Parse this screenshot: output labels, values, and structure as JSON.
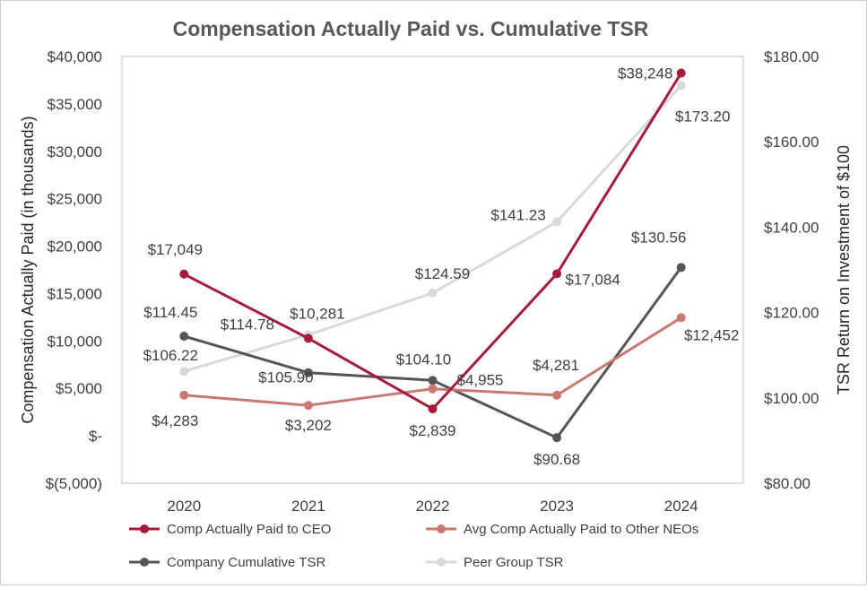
{
  "chart_data": {
    "type": "line",
    "title": "Compensation Actually Paid vs. Cumulative TSR",
    "ylabel": "Compensation Actually Paid (in thousands)",
    "y2label": "TSR Return on Investment of $100",
    "categories": [
      "2020",
      "2021",
      "2022",
      "2023",
      "2024"
    ],
    "ylim": [
      -5000,
      40000
    ],
    "y2lim": [
      80,
      180
    ],
    "yticks": [
      {
        "value": 40000,
        "label": "$40,000"
      },
      {
        "value": 35000,
        "label": "$35,000"
      },
      {
        "value": 30000,
        "label": "$30,000"
      },
      {
        "value": 25000,
        "label": "$25,000"
      },
      {
        "value": 20000,
        "label": "$20,000"
      },
      {
        "value": 15000,
        "label": "$15,000"
      },
      {
        "value": 10000,
        "label": "$10,000"
      },
      {
        "value": 5000,
        "label": "$5,000"
      },
      {
        "value": 0,
        "label": "$-"
      },
      {
        "value": -5000,
        "label": "$(5,000)"
      }
    ],
    "y2ticks": [
      {
        "value": 180,
        "label": "$180.00"
      },
      {
        "value": 160,
        "label": "$160.00"
      },
      {
        "value": 140,
        "label": "$140.00"
      },
      {
        "value": 120,
        "label": "$120.00"
      },
      {
        "value": 100,
        "label": "$100.00"
      },
      {
        "value": 80,
        "label": "$80.00"
      }
    ],
    "series": [
      {
        "name": "Comp Actually Paid to CEO",
        "axis": "left",
        "color": "#a51c3a",
        "values": [
          17049,
          10281,
          2839,
          17084,
          38248
        ],
        "labels": [
          "$17,049",
          "$10,281",
          "$2,839",
          "$17,084",
          "$38,248"
        ]
      },
      {
        "name": "Avg Comp Actually Paid to Other NEOs",
        "axis": "left",
        "color": "#c97872",
        "values": [
          4283,
          3202,
          4955,
          4281,
          12452
        ],
        "labels": [
          "$4,283",
          "$3,202",
          "$4,955",
          "$4,281",
          "$12,452"
        ]
      },
      {
        "name": "Company Cumulative TSR",
        "axis": "right",
        "color": "#555555",
        "values": [
          114.45,
          105.9,
          104.1,
          90.68,
          130.56
        ],
        "labels": [
          "$114.45",
          "$105.90",
          "$104.10",
          "$90.68",
          "$130.56"
        ]
      },
      {
        "name": "Peer Group TSR",
        "axis": "right",
        "color": "#d9d9d9",
        "values": [
          106.22,
          114.78,
          124.59,
          141.23,
          173.2
        ],
        "labels": [
          "$106.22",
          "$114.78",
          "$124.59",
          "$141.23",
          "$173.20"
        ]
      }
    ],
    "grid": false,
    "legend_position": "bottom"
  }
}
